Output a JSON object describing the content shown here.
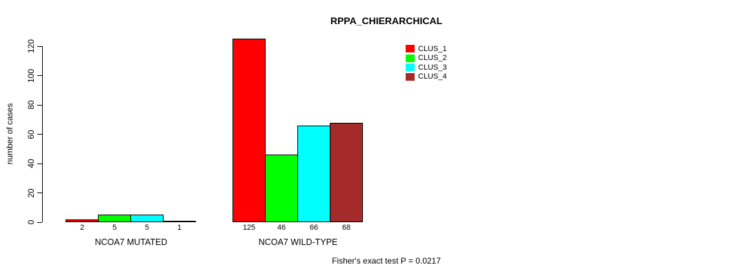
{
  "title": "RPPA_CHIERARCHICAL",
  "chart_data": {
    "type": "bar",
    "title": "RPPA_CHIERARCHICAL",
    "ylabel": "number of cases",
    "xlabel": "",
    "ylim": [
      0,
      120
    ],
    "yticks": [
      0,
      20,
      40,
      60,
      80,
      100,
      120
    ],
    "grid": false,
    "legend_position": "inside-top-center",
    "categories": [
      "NCOA7 MUTATED",
      "NCOA7 WILD-TYPE"
    ],
    "series": [
      {
        "name": "CLUS_1",
        "color": "#ff0000",
        "values": [
          2,
          125
        ]
      },
      {
        "name": "CLUS_2",
        "color": "#00ff00",
        "values": [
          5,
          46
        ]
      },
      {
        "name": "CLUS_3",
        "color": "#00ffff",
        "values": [
          5,
          66
        ]
      },
      {
        "name": "CLUS_4",
        "color": "#a52a2a",
        "values": [
          1,
          68
        ]
      }
    ],
    "bar_value_labels": [
      [
        "2",
        "5",
        "5",
        "1"
      ],
      [
        "125",
        "46",
        "66",
        "68"
      ]
    ],
    "annotation": "Fisher's exact test P = 0.0217"
  }
}
